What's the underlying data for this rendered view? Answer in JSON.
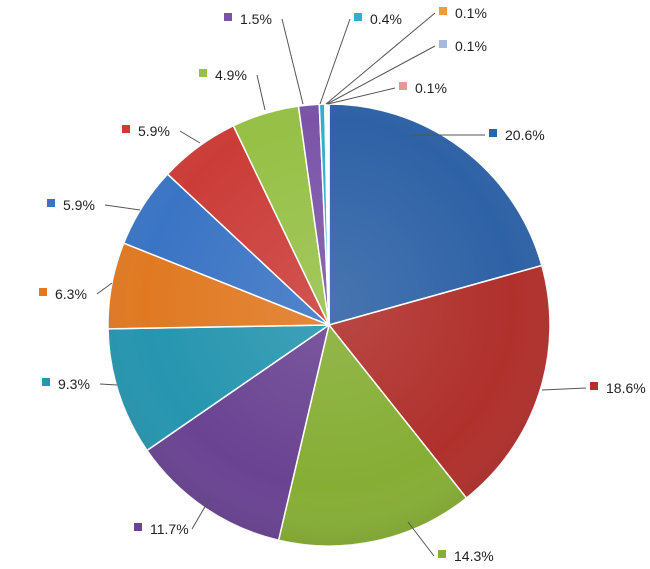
{
  "chart_data": {
    "type": "pie",
    "title": "",
    "start_angle_deg": 0,
    "direction": "clockwise",
    "slices": [
      {
        "value": 20.6,
        "label": "20.6%",
        "color": "#2E62A6"
      },
      {
        "value": 18.6,
        "label": "18.6%",
        "color": "#B0302C"
      },
      {
        "value": 14.3,
        "label": "14.3%",
        "color": "#86AE35"
      },
      {
        "value": 11.7,
        "label": "11.7%",
        "color": "#6A4392"
      },
      {
        "value": 9.3,
        "label": "9.3%",
        "color": "#2695AF"
      },
      {
        "value": 6.3,
        "label": "6.3%",
        "color": "#E07922"
      },
      {
        "value": 5.9,
        "label": "5.9%",
        "color": "#3A74C4"
      },
      {
        "value": 5.9,
        "label": "5.9%",
        "color": "#CB3C38"
      },
      {
        "value": 4.9,
        "label": "4.9%",
        "color": "#96C046"
      },
      {
        "value": 1.5,
        "label": "1.5%",
        "color": "#7B54A8"
      },
      {
        "value": 0.4,
        "label": "0.4%",
        "color": "#33AECB"
      },
      {
        "value": 0.1,
        "label": "0.1%",
        "color": "#F59A3C"
      },
      {
        "value": 0.1,
        "label": "0.1%",
        "color": "#A6B8DC"
      },
      {
        "value": 0.1,
        "label": "0.1%",
        "color": "#E39996"
      }
    ]
  }
}
